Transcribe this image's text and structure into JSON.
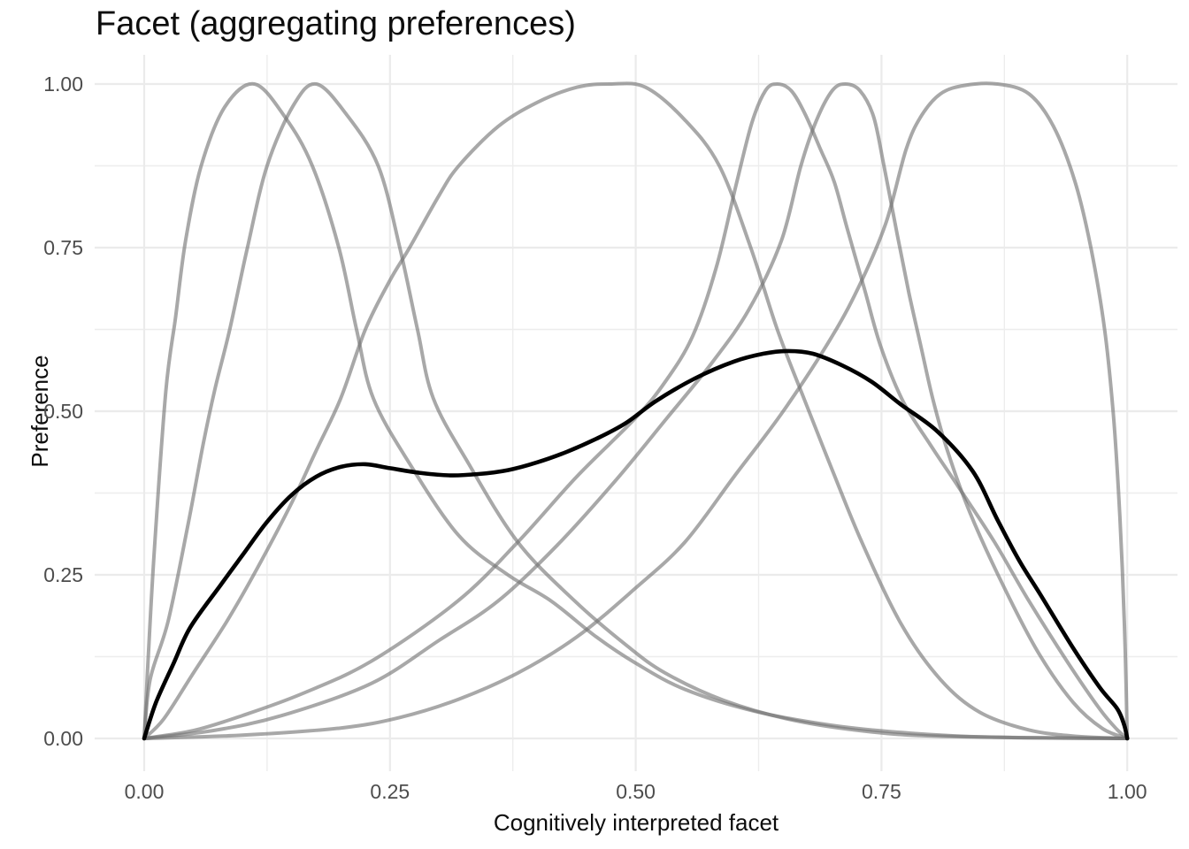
{
  "chart_data": {
    "type": "line",
    "title": "Facet (aggregating preferences)",
    "xlabel": "Cognitively interpreted facet",
    "ylabel": "Preference",
    "xlim": [
      0,
      1
    ],
    "ylim": [
      0,
      1
    ],
    "axis_expansion": 0.05,
    "grid": {
      "on": true,
      "major_color": "#ebebeb",
      "minor_color": "#ededed",
      "major_width": 2.2,
      "minor_width": 1.4
    },
    "legend_position": "none",
    "x_ticks": {
      "values": [
        0,
        0.25,
        0.5,
        0.75,
        1
      ],
      "labels": [
        "0.00",
        "0.25",
        "0.50",
        "0.75",
        "1.00"
      ]
    },
    "y_ticks": {
      "values": [
        0,
        0.25,
        0.5,
        0.75,
        1
      ],
      "labels": [
        "0.00",
        "0.25",
        "0.50",
        "0.75",
        "1.00"
      ]
    },
    "x_minor_ticks": [
      0.125,
      0.375,
      0.625,
      0.875
    ],
    "y_minor_ticks": [
      0.125,
      0.375,
      0.625,
      0.875
    ],
    "colors": {
      "component_stroke": "rgba(115,115,115,0.62)",
      "aggregate_stroke": "#000000",
      "background": "#ffffff",
      "tick_text": "#4d4d4d",
      "title_text": "#0d0d0d"
    },
    "stroke_widths": {
      "component": 4,
      "aggregate": 4.6
    },
    "series": [
      {
        "name": "preference-component-1",
        "role": "component",
        "peak_x": 0.112,
        "points": [
          [
            0,
            0
          ],
          [
            0.004,
            0.12
          ],
          [
            0.01,
            0.28
          ],
          [
            0.022,
            0.53
          ],
          [
            0.032,
            0.645
          ],
          [
            0.042,
            0.76
          ],
          [
            0.058,
            0.875
          ],
          [
            0.082,
            0.965
          ],
          [
            0.112,
            1
          ],
          [
            0.143,
            0.95
          ],
          [
            0.171,
            0.875
          ],
          [
            0.198,
            0.75
          ],
          [
            0.216,
            0.625
          ],
          [
            0.233,
            0.52
          ],
          [
            0.27,
            0.42
          ],
          [
            0.32,
            0.31
          ],
          [
            0.37,
            0.25
          ],
          [
            0.414,
            0.21
          ],
          [
            0.46,
            0.155
          ],
          [
            0.5,
            0.115
          ],
          [
            0.55,
            0.075
          ],
          [
            0.62,
            0.042
          ],
          [
            0.7,
            0.02
          ],
          [
            0.78,
            0.008
          ],
          [
            0.86,
            0.002
          ],
          [
            1,
            0
          ]
        ]
      },
      {
        "name": "preference-component-2",
        "role": "component",
        "peak_x": 0.175,
        "points": [
          [
            0,
            0
          ],
          [
            0.006,
            0.09
          ],
          [
            0.0245,
            0.18
          ],
          [
            0.045,
            0.33
          ],
          [
            0.06,
            0.45
          ],
          [
            0.072,
            0.534
          ],
          [
            0.087,
            0.625
          ],
          [
            0.105,
            0.75
          ],
          [
            0.125,
            0.875
          ],
          [
            0.152,
            0.968
          ],
          [
            0.175,
            1
          ],
          [
            0.205,
            0.955
          ],
          [
            0.238,
            0.875
          ],
          [
            0.26,
            0.75
          ],
          [
            0.278,
            0.625
          ],
          [
            0.294,
            0.52
          ],
          [
            0.33,
            0.42
          ],
          [
            0.38,
            0.3
          ],
          [
            0.438,
            0.21
          ],
          [
            0.49,
            0.143
          ],
          [
            0.53,
            0.1
          ],
          [
            0.59,
            0.058
          ],
          [
            0.66,
            0.028
          ],
          [
            0.74,
            0.01
          ],
          [
            0.82,
            0.003
          ],
          [
            1,
            0
          ]
        ]
      },
      {
        "name": "preference-component-3",
        "role": "component",
        "peak_x": 0.474,
        "points": [
          [
            0,
            0
          ],
          [
            0.02,
            0.03
          ],
          [
            0.05,
            0.1
          ],
          [
            0.0845,
            0.18
          ],
          [
            0.115,
            0.26
          ],
          [
            0.15,
            0.36
          ],
          [
            0.175,
            0.44
          ],
          [
            0.2,
            0.52
          ],
          [
            0.225,
            0.625
          ],
          [
            0.25,
            0.7
          ],
          [
            0.27,
            0.75
          ],
          [
            0.3,
            0.83
          ],
          [
            0.32,
            0.875
          ],
          [
            0.36,
            0.935
          ],
          [
            0.4,
            0.972
          ],
          [
            0.44,
            0.995
          ],
          [
            0.474,
            1
          ],
          [
            0.51,
            0.995
          ],
          [
            0.55,
            0.945
          ],
          [
            0.585,
            0.875
          ],
          [
            0.617,
            0.75
          ],
          [
            0.644,
            0.625
          ],
          [
            0.671,
            0.52
          ],
          [
            0.7,
            0.41
          ],
          [
            0.73,
            0.3
          ],
          [
            0.77,
            0.175
          ],
          [
            0.81,
            0.09
          ],
          [
            0.85,
            0.04
          ],
          [
            0.9,
            0.013
          ],
          [
            0.95,
            0.003
          ],
          [
            1,
            0
          ]
        ]
      },
      {
        "name": "preference-component-4",
        "role": "component",
        "peak_x": 0.644,
        "points": [
          [
            0,
            0
          ],
          [
            0.05,
            0.012
          ],
          [
            0.1,
            0.035
          ],
          [
            0.16,
            0.068
          ],
          [
            0.231,
            0.118
          ],
          [
            0.319,
            0.21
          ],
          [
            0.38,
            0.3
          ],
          [
            0.44,
            0.4
          ],
          [
            0.5,
            0.49
          ],
          [
            0.53,
            0.545
          ],
          [
            0.558,
            0.615
          ],
          [
            0.582,
            0.72
          ],
          [
            0.602,
            0.845
          ],
          [
            0.618,
            0.94
          ],
          [
            0.632,
            0.99
          ],
          [
            0.644,
            1
          ],
          [
            0.658,
            0.99
          ],
          [
            0.672,
            0.955
          ],
          [
            0.688,
            0.9
          ],
          [
            0.702,
            0.85
          ],
          [
            0.7155,
            0.777
          ],
          [
            0.733,
            0.685
          ],
          [
            0.749,
            0.6
          ],
          [
            0.772,
            0.515
          ],
          [
            0.8,
            0.448
          ],
          [
            0.828,
            0.385
          ],
          [
            0.865,
            0.3
          ],
          [
            0.9,
            0.21
          ],
          [
            0.94,
            0.115
          ],
          [
            0.972,
            0.045
          ],
          [
            0.99,
            0.013
          ],
          [
            1,
            0
          ]
        ]
      },
      {
        "name": "preference-component-5",
        "role": "component",
        "peak_x": 0.713,
        "points": [
          [
            0,
            0
          ],
          [
            0.07,
            0.012
          ],
          [
            0.14,
            0.035
          ],
          [
            0.231,
            0.084
          ],
          [
            0.3,
            0.15
          ],
          [
            0.36,
            0.21
          ],
          [
            0.42,
            0.295
          ],
          [
            0.48,
            0.395
          ],
          [
            0.532,
            0.49
          ],
          [
            0.578,
            0.575
          ],
          [
            0.615,
            0.655
          ],
          [
            0.648,
            0.76
          ],
          [
            0.668,
            0.875
          ],
          [
            0.684,
            0.945
          ],
          [
            0.7,
            0.99
          ],
          [
            0.713,
            1
          ],
          [
            0.728,
            0.99
          ],
          [
            0.742,
            0.95
          ],
          [
            0.7525,
            0.875
          ],
          [
            0.766,
            0.77
          ],
          [
            0.778,
            0.68
          ],
          [
            0.79,
            0.6
          ],
          [
            0.802,
            0.52
          ],
          [
            0.817,
            0.44
          ],
          [
            0.84,
            0.345
          ],
          [
            0.875,
            0.23
          ],
          [
            0.91,
            0.13
          ],
          [
            0.945,
            0.055
          ],
          [
            0.975,
            0.015
          ],
          [
            1,
            0
          ]
        ]
      },
      {
        "name": "preference-component-6",
        "role": "component",
        "peak_x": 0.868,
        "points": [
          [
            0,
            0
          ],
          [
            0.1,
            0.005
          ],
          [
            0.2,
            0.016
          ],
          [
            0.26,
            0.032
          ],
          [
            0.32,
            0.06
          ],
          [
            0.38,
            0.1
          ],
          [
            0.44,
            0.155
          ],
          [
            0.5,
            0.23
          ],
          [
            0.55,
            0.3
          ],
          [
            0.6,
            0.4
          ],
          [
            0.65,
            0.5
          ],
          [
            0.7,
            0.615
          ],
          [
            0.73,
            0.7
          ],
          [
            0.755,
            0.79
          ],
          [
            0.775,
            0.9
          ],
          [
            0.79,
            0.95
          ],
          [
            0.81,
            0.985
          ],
          [
            0.835,
            0.998
          ],
          [
            0.868,
            1
          ],
          [
            0.9,
            0.985
          ],
          [
            0.925,
            0.935
          ],
          [
            0.947,
            0.85
          ],
          [
            0.963,
            0.75
          ],
          [
            0.977,
            0.625
          ],
          [
            0.9856,
            0.5
          ],
          [
            0.991,
            0.38
          ],
          [
            0.995,
            0.26
          ],
          [
            0.998,
            0.13
          ],
          [
            1,
            0
          ]
        ]
      },
      {
        "name": "aggregated-preference",
        "role": "aggregate",
        "peak_x": 0.655,
        "points": [
          [
            0,
            0
          ],
          [
            0.012,
            0.055
          ],
          [
            0.03,
            0.115
          ],
          [
            0.047,
            0.17
          ],
          [
            0.078,
            0.235
          ],
          [
            0.1,
            0.28
          ],
          [
            0.125,
            0.331
          ],
          [
            0.15,
            0.372
          ],
          [
            0.175,
            0.4
          ],
          [
            0.2,
            0.415
          ],
          [
            0.225,
            0.419
          ],
          [
            0.25,
            0.413
          ],
          [
            0.28,
            0.406
          ],
          [
            0.31,
            0.402
          ],
          [
            0.34,
            0.404
          ],
          [
            0.37,
            0.41
          ],
          [
            0.4,
            0.422
          ],
          [
            0.43,
            0.438
          ],
          [
            0.46,
            0.458
          ],
          [
            0.49,
            0.482
          ],
          [
            0.52,
            0.515
          ],
          [
            0.56,
            0.55
          ],
          [
            0.6,
            0.576
          ],
          [
            0.63,
            0.588
          ],
          [
            0.655,
            0.592
          ],
          [
            0.68,
            0.588
          ],
          [
            0.71,
            0.57
          ],
          [
            0.74,
            0.545
          ],
          [
            0.77,
            0.51
          ],
          [
            0.807,
            0.469
          ],
          [
            0.843,
            0.408
          ],
          [
            0.868,
            0.334
          ],
          [
            0.89,
            0.272
          ],
          [
            0.912,
            0.219
          ],
          [
            0.945,
            0.138
          ],
          [
            0.972,
            0.078
          ],
          [
            0.99,
            0.045
          ],
          [
            0.997,
            0.02
          ],
          [
            1,
            0
          ]
        ]
      }
    ]
  }
}
